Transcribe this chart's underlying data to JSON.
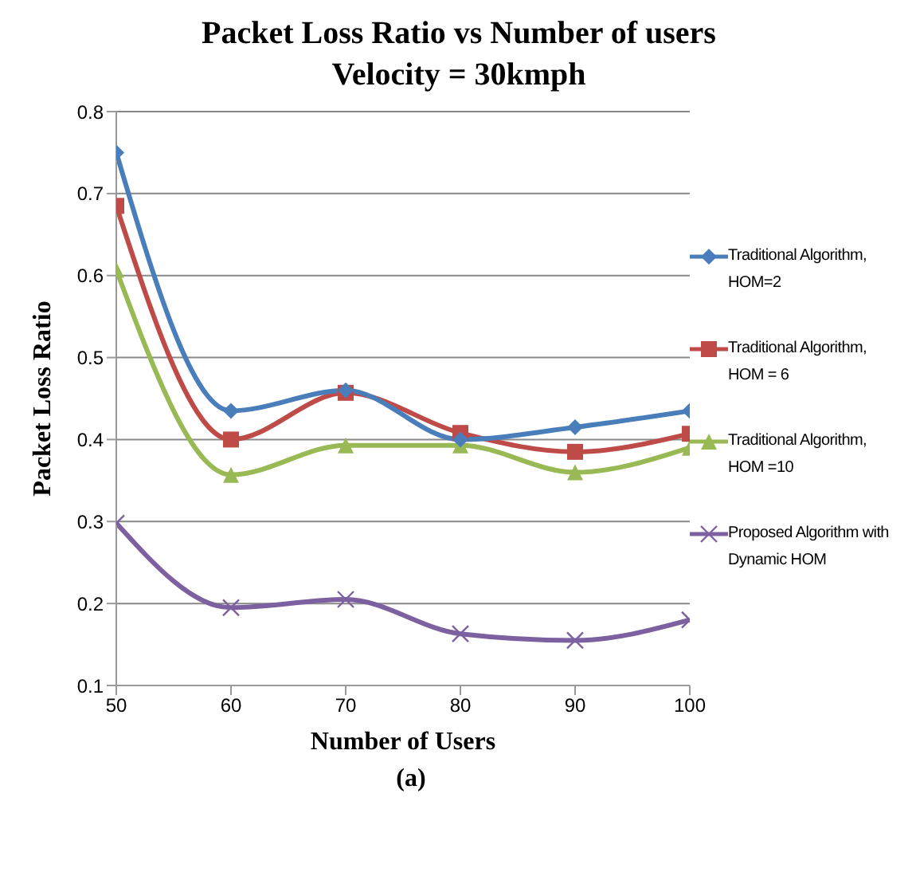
{
  "chart_data": {
    "type": "line",
    "title": "Packet Loss Ratio vs Number of users",
    "subtitle": "Velocity = 30kmph",
    "xlabel": "Number of Users",
    "ylabel": "Packet Loss Ratio",
    "annotations": [
      "(a)"
    ],
    "categories": [
      "50",
      "60",
      "70",
      "80",
      "90",
      "100"
    ],
    "series": [
      {
        "name": "Traditional Algorithm, HOM=2",
        "color": "#4a7ebb",
        "marker": "diamond",
        "values": [
          0.75,
          0.435,
          0.46,
          0.4,
          0.415,
          0.435
        ]
      },
      {
        "name": "Traditional Algorithm, HOM = 6",
        "color": "#be4b48",
        "marker": "square",
        "values": [
          0.685,
          0.4,
          0.457,
          0.408,
          0.385,
          0.407
        ]
      },
      {
        "name": "Traditional Algorithm, HOM =10",
        "color": "#98b954",
        "marker": "triangle",
        "values": [
          0.607,
          0.357,
          0.393,
          0.393,
          0.36,
          0.39
        ]
      },
      {
        "name": "Proposed Algorithm with Dynamic HOM",
        "color": "#7d60a0",
        "marker": "cross",
        "values": [
          0.298,
          0.195,
          0.205,
          0.163,
          0.155,
          0.18
        ]
      }
    ],
    "ylim": [
      0.1,
      0.8
    ],
    "yticks": [
      0.1,
      0.2,
      0.3,
      0.4,
      0.5,
      0.6,
      0.7,
      0.8
    ],
    "grid": "y",
    "legend": "right"
  }
}
